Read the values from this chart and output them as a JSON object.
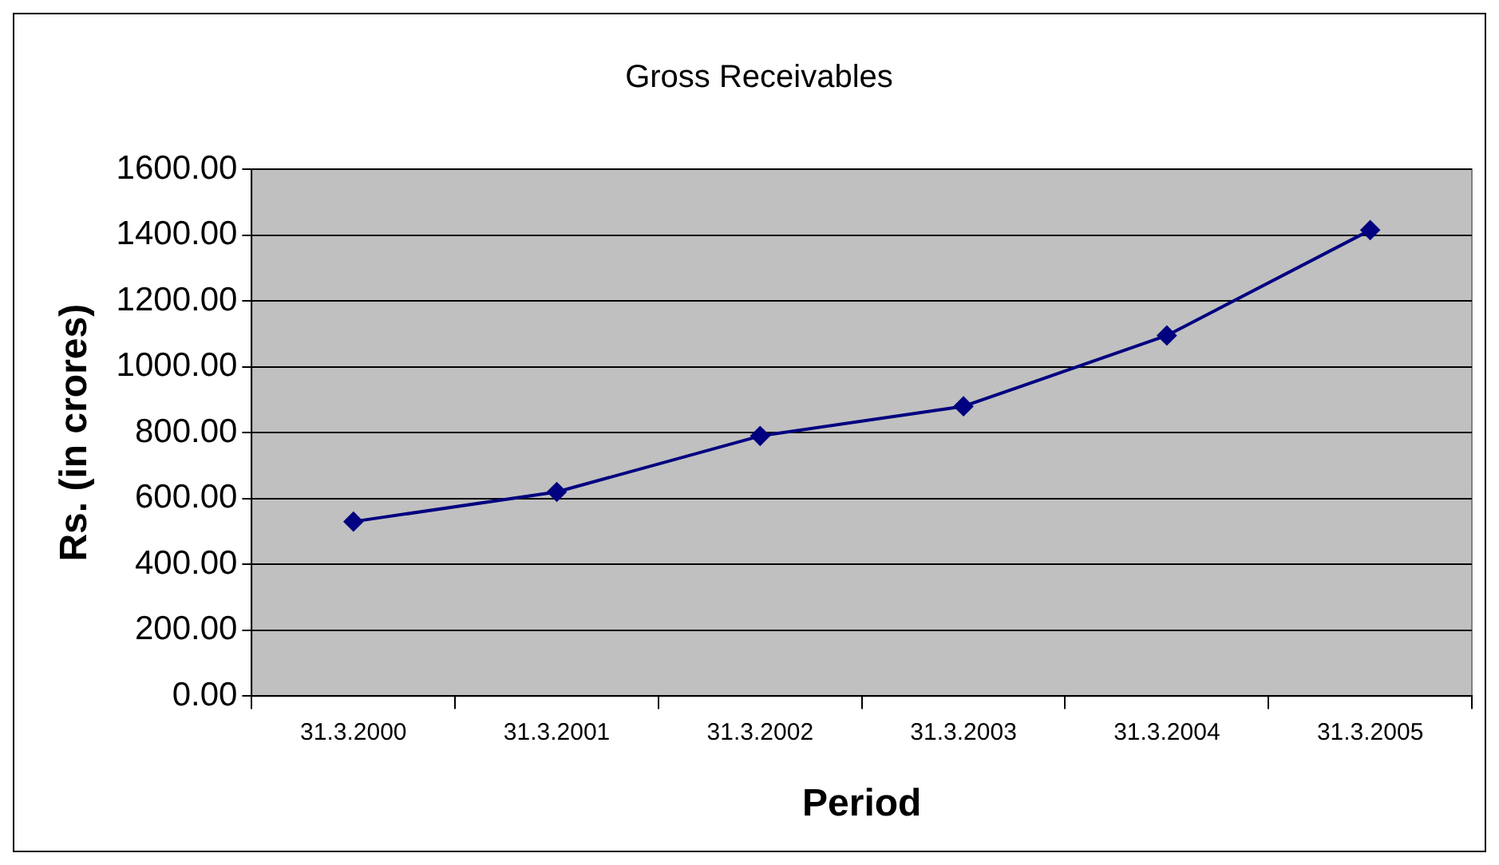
{
  "chart_data": {
    "type": "line",
    "title": "Gross Receivables",
    "xlabel": "Period",
    "ylabel": "Rs. (in crores)",
    "categories": [
      "31.3.2000",
      "31.3.2001",
      "31.3.2002",
      "31.3.2003",
      "31.3.2004",
      "31.3.2005"
    ],
    "series": [
      {
        "color": "#000080",
        "values": [
          530,
          620,
          790,
          880,
          1095,
          1415
        ]
      }
    ],
    "ylim": [
      0,
      1600
    ],
    "yticks": [
      {
        "value": 0,
        "label": "0.00"
      },
      {
        "value": 200,
        "label": "200.00"
      },
      {
        "value": 400,
        "label": "400.00"
      },
      {
        "value": 600,
        "label": "600.00"
      },
      {
        "value": 800,
        "label": "800.00"
      },
      {
        "value": 1000,
        "label": "1000.00"
      },
      {
        "value": 1200,
        "label": "1200.00"
      },
      {
        "value": 1400,
        "label": "1400.00"
      },
      {
        "value": 1600,
        "label": "1600.00"
      }
    ],
    "grid": "y",
    "legend": false,
    "marker": "diamond",
    "line_style": "solid"
  }
}
